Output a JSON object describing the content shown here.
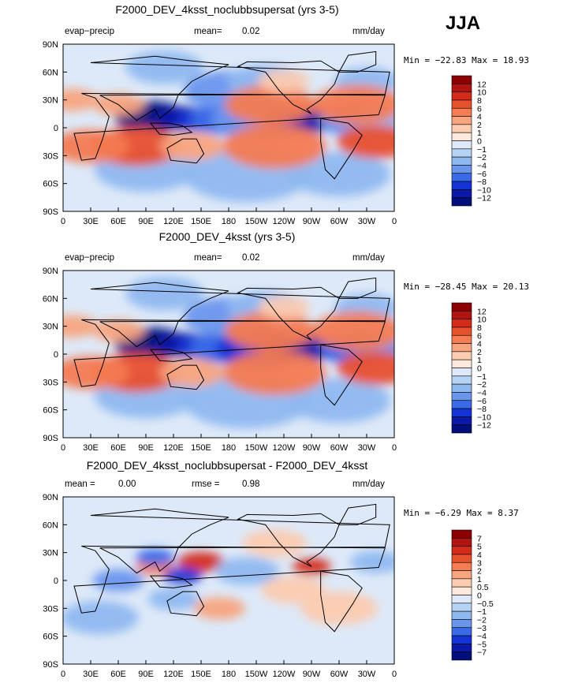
{
  "season": "JJA",
  "tick_color": "#000000",
  "chart_data": [
    {
      "type": "heatmap",
      "title": "F2000_DEV_4ksst_noclubbsupersat (yrs 3-5)",
      "left_label": "evap−precip",
      "stat_label": "mean=",
      "stat_value": "0.02",
      "units": "mm/day",
      "minmax": "Min = −22.83 Max =  18.93",
      "yticks": [
        "90N",
        "60N",
        "30N",
        "0",
        "30S",
        "60S",
        "90S"
      ],
      "xticks": [
        "0",
        "30E",
        "60E",
        "90E",
        "120E",
        "150E",
        "180",
        "150W",
        "120W",
        "90W",
        "60W",
        "30W",
        "0"
      ],
      "colorbar_labels": [
        "12",
        "10",
        "8",
        "6",
        "4",
        "2",
        "1",
        "0",
        "−1",
        "−2",
        "−4",
        "−6",
        "−8",
        "−10",
        "−12"
      ],
      "colorbar_colors": [
        "#8b0000",
        "#b2140f",
        "#d42a1a",
        "#e8502e",
        "#f47b52",
        "#f8a47e",
        "#fccbb1",
        "#fde9dc",
        "#dde9f8",
        "#b6d2f4",
        "#8fb8f1",
        "#6a96ed",
        "#3a6ae8",
        "#1433d5",
        "#0a1aa6",
        "#000d7a"
      ],
      "stamps": [
        {
          "lon": 95,
          "lat": 12,
          "r": 28,
          "v": -12
        },
        {
          "lon": 130,
          "lat": 10,
          "r": 22,
          "v": -10
        },
        {
          "lon": 150,
          "lat": 8,
          "r": 20,
          "v": -8
        },
        {
          "lon": 180,
          "lat": 10,
          "r": 30,
          "v": -6
        },
        {
          "lon": 210,
          "lat": 8,
          "r": 35,
          "v": -5
        },
        {
          "lon": 255,
          "lat": 8,
          "r": 25,
          "v": -8
        },
        {
          "lon": 275,
          "lat": 8,
          "r": 20,
          "v": -10
        },
        {
          "lon": 320,
          "lat": 8,
          "r": 30,
          "v": -4
        },
        {
          "lon": 345,
          "lat": 8,
          "r": 20,
          "v": -3
        },
        {
          "lon": 180,
          "lat": 40,
          "r": 35,
          "v": -4
        },
        {
          "lon": 220,
          "lat": 50,
          "r": 30,
          "v": -3
        },
        {
          "lon": 330,
          "lat": 50,
          "r": 25,
          "v": -3
        },
        {
          "lon": 90,
          "lat": -45,
          "r": 40,
          "v": -2
        },
        {
          "lon": 200,
          "lat": -50,
          "r": 50,
          "v": -2
        },
        {
          "lon": 300,
          "lat": -50,
          "r": 40,
          "v": -2
        },
        {
          "lon": 110,
          "lat": 65,
          "r": 30,
          "v": -2
        },
        {
          "lon": 80,
          "lat": -20,
          "r": 35,
          "v": 8
        },
        {
          "lon": 30,
          "lat": -20,
          "r": 30,
          "v": 6
        },
        {
          "lon": 140,
          "lat": -20,
          "r": 25,
          "v": 4
        },
        {
          "lon": 230,
          "lat": -20,
          "r": 40,
          "v": 6
        },
        {
          "lon": 340,
          "lat": -15,
          "r": 30,
          "v": 8
        },
        {
          "lon": 225,
          "lat": 25,
          "r": 35,
          "v": 5
        },
        {
          "lon": 320,
          "lat": 25,
          "r": 35,
          "v": 6
        },
        {
          "lon": 60,
          "lat": 25,
          "r": 20,
          "v": 4
        },
        {
          "lon": 10,
          "lat": 30,
          "r": 20,
          "v": 3
        },
        {
          "lon": 240,
          "lat": 50,
          "r": 20,
          "v": 2
        }
      ]
    },
    {
      "type": "heatmap",
      "title": "F2000_DEV_4ksst (yrs 3-5)",
      "left_label": "evap−precip",
      "stat_label": "mean=",
      "stat_value": "0.02",
      "units": "mm/day",
      "minmax": "Min = −28.45 Max =  20.13",
      "yticks": [
        "90N",
        "60N",
        "30N",
        "0",
        "30S",
        "60S",
        "90S"
      ],
      "xticks": [
        "0",
        "30E",
        "60E",
        "90E",
        "120E",
        "150E",
        "180",
        "150W",
        "120W",
        "90W",
        "60W",
        "30W",
        "0"
      ],
      "colorbar_labels": [
        "12",
        "10",
        "8",
        "6",
        "4",
        "2",
        "1",
        "0",
        "−1",
        "−2",
        "−4",
        "−6",
        "−8",
        "−10",
        "−12"
      ],
      "colorbar_colors": [
        "#8b0000",
        "#b2140f",
        "#d42a1a",
        "#e8502e",
        "#f47b52",
        "#f8a47e",
        "#fccbb1",
        "#fde9dc",
        "#dde9f8",
        "#b6d2f4",
        "#8fb8f1",
        "#6a96ed",
        "#3a6ae8",
        "#1433d5",
        "#0a1aa6",
        "#000d7a"
      ],
      "stamps": [
        {
          "lon": 95,
          "lat": 12,
          "r": 28,
          "v": -12
        },
        {
          "lon": 130,
          "lat": 10,
          "r": 22,
          "v": -10
        },
        {
          "lon": 150,
          "lat": 8,
          "r": 20,
          "v": -8
        },
        {
          "lon": 180,
          "lat": 8,
          "r": 30,
          "v": -6
        },
        {
          "lon": 215,
          "lat": 6,
          "r": 35,
          "v": -8
        },
        {
          "lon": 255,
          "lat": 6,
          "r": 25,
          "v": -10
        },
        {
          "lon": 275,
          "lat": 6,
          "r": 20,
          "v": -10
        },
        {
          "lon": 320,
          "lat": 6,
          "r": 30,
          "v": -6
        },
        {
          "lon": 345,
          "lat": 6,
          "r": 20,
          "v": -5
        },
        {
          "lon": 180,
          "lat": 40,
          "r": 35,
          "v": -4
        },
        {
          "lon": 220,
          "lat": 50,
          "r": 30,
          "v": -3
        },
        {
          "lon": 330,
          "lat": 50,
          "r": 25,
          "v": -3
        },
        {
          "lon": 90,
          "lat": -45,
          "r": 40,
          "v": -2
        },
        {
          "lon": 200,
          "lat": -50,
          "r": 50,
          "v": -2
        },
        {
          "lon": 300,
          "lat": -50,
          "r": 40,
          "v": -2
        },
        {
          "lon": 110,
          "lat": 65,
          "r": 30,
          "v": -2
        },
        {
          "lon": 80,
          "lat": -20,
          "r": 35,
          "v": 8
        },
        {
          "lon": 30,
          "lat": -20,
          "r": 30,
          "v": 6
        },
        {
          "lon": 140,
          "lat": -20,
          "r": 25,
          "v": 4
        },
        {
          "lon": 230,
          "lat": -20,
          "r": 40,
          "v": 6
        },
        {
          "lon": 340,
          "lat": -15,
          "r": 30,
          "v": 8
        },
        {
          "lon": 225,
          "lat": 25,
          "r": 35,
          "v": 5
        },
        {
          "lon": 320,
          "lat": 25,
          "r": 35,
          "v": 6
        },
        {
          "lon": 60,
          "lat": 25,
          "r": 20,
          "v": 4
        },
        {
          "lon": 10,
          "lat": 30,
          "r": 20,
          "v": 3
        },
        {
          "lon": 240,
          "lat": 50,
          "r": 20,
          "v": 2
        }
      ]
    },
    {
      "type": "heatmap",
      "title": "F2000_DEV_4ksst_noclubbsupersat - F2000_DEV_4ksst",
      "left_label": "mean =",
      "left_value": "0.00",
      "stat_label": "rmse =",
      "stat_value": "0.98",
      "units": "mm/day",
      "minmax": "Min =  −6.29 Max =   8.37",
      "yticks": [
        "90N",
        "60N",
        "30N",
        "0",
        "30S",
        "60S",
        "90S"
      ],
      "xticks": [
        "0",
        "30E",
        "60E",
        "90E",
        "120E",
        "150E",
        "180",
        "150W",
        "120W",
        "90W",
        "60W",
        "30W",
        "0"
      ],
      "colorbar_labels": [
        "7",
        "5",
        "4",
        "3",
        "2",
        "1",
        "0.5",
        "0",
        "−0.5",
        "−1",
        "−2",
        "−3",
        "−4",
        "−5",
        "−7"
      ],
      "colorbar_colors": [
        "#8b0000",
        "#b2140f",
        "#d42a1a",
        "#e8502e",
        "#f47b52",
        "#f8a47e",
        "#fccbb1",
        "#fde9dc",
        "#dde9f8",
        "#b6d2f4",
        "#8fb8f1",
        "#6a96ed",
        "#3a6ae8",
        "#1433d5",
        "#0a1aa6",
        "#000d7a"
      ],
      "stamps": [
        {
          "lon": 100,
          "lat": 15,
          "r": 15,
          "v": 3
        },
        {
          "lon": 150,
          "lat": 20,
          "r": 18,
          "v": 5
        },
        {
          "lon": 270,
          "lat": 15,
          "r": 15,
          "v": 5
        },
        {
          "lon": 130,
          "lat": 5,
          "r": 15,
          "v": -4
        },
        {
          "lon": 100,
          "lat": 25,
          "r": 15,
          "v": -3
        },
        {
          "lon": 60,
          "lat": 0,
          "r": 20,
          "v": -2
        },
        {
          "lon": 200,
          "lat": 10,
          "r": 25,
          "v": -1
        },
        {
          "lon": 230,
          "lat": 40,
          "r": 25,
          "v": 1
        },
        {
          "lon": 300,
          "lat": -30,
          "r": 30,
          "v": 1
        },
        {
          "lon": 40,
          "lat": -40,
          "r": 30,
          "v": -1
        },
        {
          "lon": 170,
          "lat": -30,
          "r": 20,
          "v": 1.5
        },
        {
          "lon": 120,
          "lat": -20,
          "r": 20,
          "v": -1
        },
        {
          "lon": 340,
          "lat": 20,
          "r": 20,
          "v": -1
        },
        {
          "lon": 250,
          "lat": -10,
          "r": 25,
          "v": 0.8
        }
      ]
    }
  ]
}
